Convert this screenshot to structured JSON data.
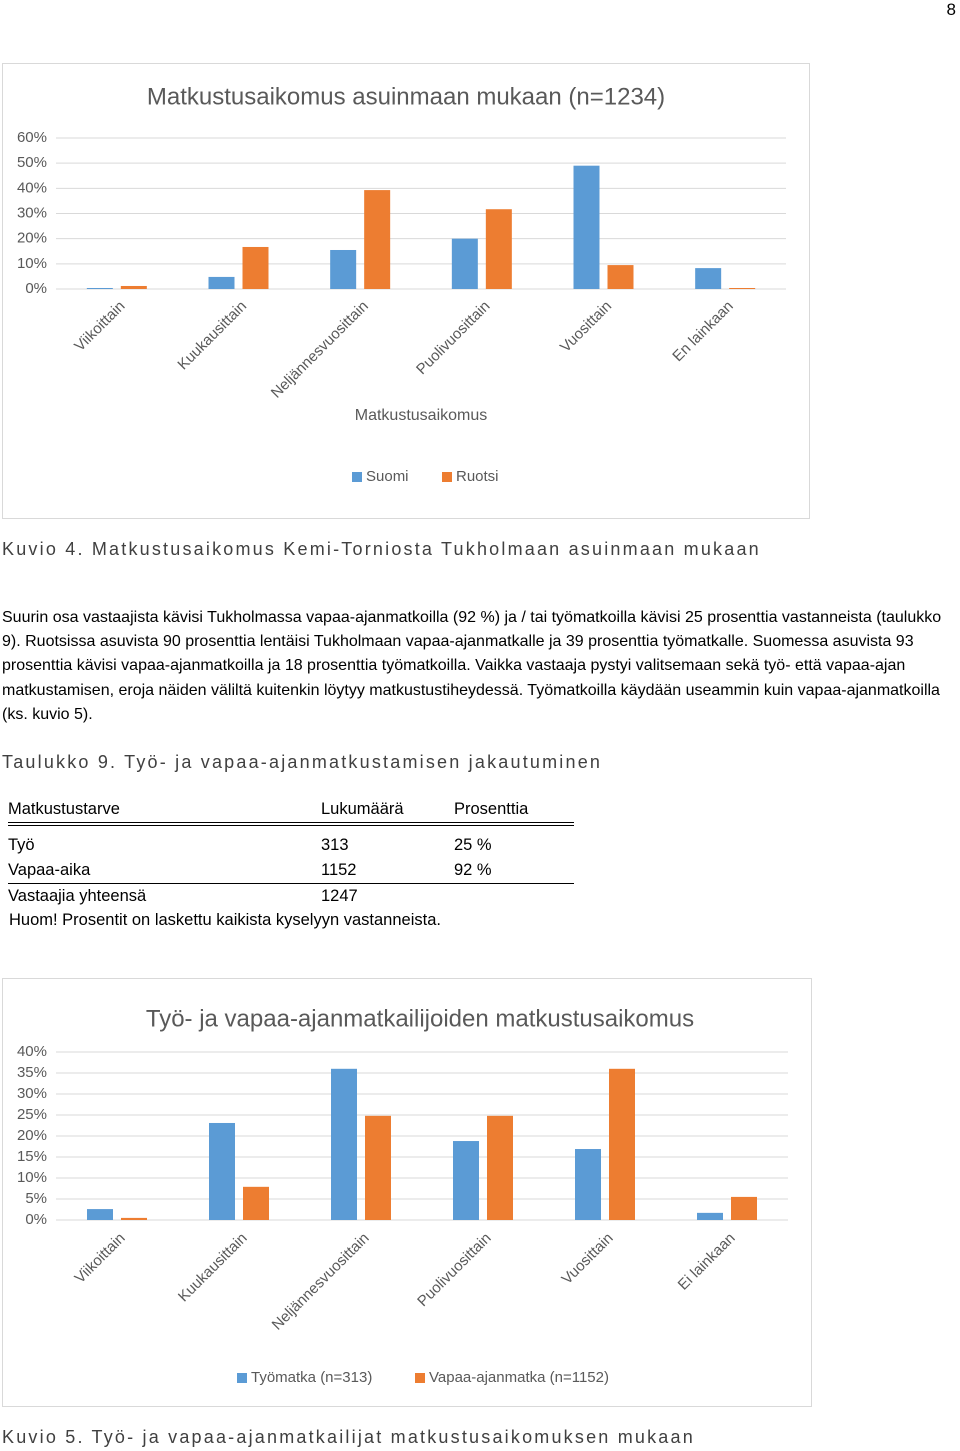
{
  "page_number": "8",
  "chart_data": [
    {
      "type": "bar",
      "title": "Matkustusaikomus asuinmaan mukaan (n=1234)",
      "x_label": "Matkustusaikomus",
      "categories": [
        "Viikoittain",
        "Kuukausittain",
        "Neljännesvuosittain",
        "Puolivuosittain",
        "Vuosittain",
        "En lainkaan"
      ],
      "series": [
        {
          "name": "Suomi",
          "color": "#5b9bd5",
          "values": [
            0.4,
            4.8,
            15.5,
            20,
            49,
            8.3
          ]
        },
        {
          "name": "Ruotsi",
          "color": "#ed7d31",
          "values": [
            1.2,
            16.7,
            39.3,
            31.7,
            9.5,
            0.4
          ]
        }
      ],
      "ylim": [
        0,
        60
      ],
      "yticks": [
        {
          "value": 0,
          "label": "0%"
        },
        {
          "value": 10,
          "label": "10%"
        },
        {
          "value": 20,
          "label": "20%"
        },
        {
          "value": 30,
          "label": "30%"
        },
        {
          "value": 40,
          "label": "40%"
        },
        {
          "value": 50,
          "label": "50%"
        },
        {
          "value": 60,
          "label": "60%"
        }
      ],
      "grid": true,
      "legend_position": "bottom"
    },
    {
      "type": "bar",
      "title": "Työ- ja vapaa-ajanmatkailijoiden matkustusaikomus",
      "categories": [
        "Viikoittain",
        "Kuukausittain",
        "Neljännesvuosittain",
        "Puolivuosittain",
        "Vuosittain",
        "Ei lainkaan"
      ],
      "series": [
        {
          "name": "Työmatka (n=313)",
          "color": "#5b9bd5",
          "values": [
            2.6,
            23.1,
            36,
            18.8,
            16.9,
            1.7
          ]
        },
        {
          "name": "Vapaa-ajanmatka (n=1152)",
          "color": "#ed7d31",
          "values": [
            0.5,
            7.9,
            24.8,
            24.8,
            36,
            5.5
          ]
        }
      ],
      "ylim": [
        0,
        40
      ],
      "yticks": [
        {
          "value": 0,
          "label": "0%"
        },
        {
          "value": 5,
          "label": "5%"
        },
        {
          "value": 10,
          "label": "10%"
        },
        {
          "value": 15,
          "label": "15%"
        },
        {
          "value": 20,
          "label": "20%"
        },
        {
          "value": 25,
          "label": "25%"
        },
        {
          "value": 30,
          "label": "30%"
        },
        {
          "value": 35,
          "label": "35%"
        },
        {
          "value": 40,
          "label": "40%"
        }
      ],
      "grid": true,
      "legend_position": "bottom"
    }
  ],
  "captions": [
    "Kuvio 4. Matkustusaikomus Kemi-Torniosta Tukholmaan asuinmaan mukaan",
    "Kuvio 5. Työ- ja vapaa-ajanmatkailijat matkustusaikomuksen mukaan"
  ],
  "paragraph": "Suurin osa vastaajista kävisi Tukholmassa vapaa-ajanmatkoilla (92 %) ja / tai työmatkoilla kävisi 25 prosenttia vastanneista (taulukko 9). Ruotsissa asuvista 90 prosenttia lentäisi Tukholmaan vapaa-ajanmatkalle ja 39 prosenttia työmatkalle. Suomessa asuvista 93 prosenttia kävisi vapaa-ajanmatkoilla ja 18 prosenttia työmatkoilla. Vaikka vastaaja pystyi valitsemaan sekä työ- että vapaa-ajan matkustamisen, eroja näiden väliltä kuitenkin löytyy matkustustiheydessä. Työmatkoilla käydään useammin kuin vapaa-ajanmatkoilla (ks. kuvio 5).",
  "table": {
    "caption": "Taulukko 9. Työ- ja vapaa-ajanmatkustamisen jakautuminen",
    "header": [
      "Matkustustarve",
      "Lukumäärä",
      "Prosenttia"
    ],
    "rows": [
      [
        "Työ",
        "313",
        "25 %"
      ],
      [
        "Vapaa-aika",
        "1152",
        "92 %"
      ],
      [
        "Vastaajia yhteensä",
        "1247"
      ]
    ],
    "note": "Huom! Prosentit on laskettu kaikista kyselyyn vastanneista."
  }
}
